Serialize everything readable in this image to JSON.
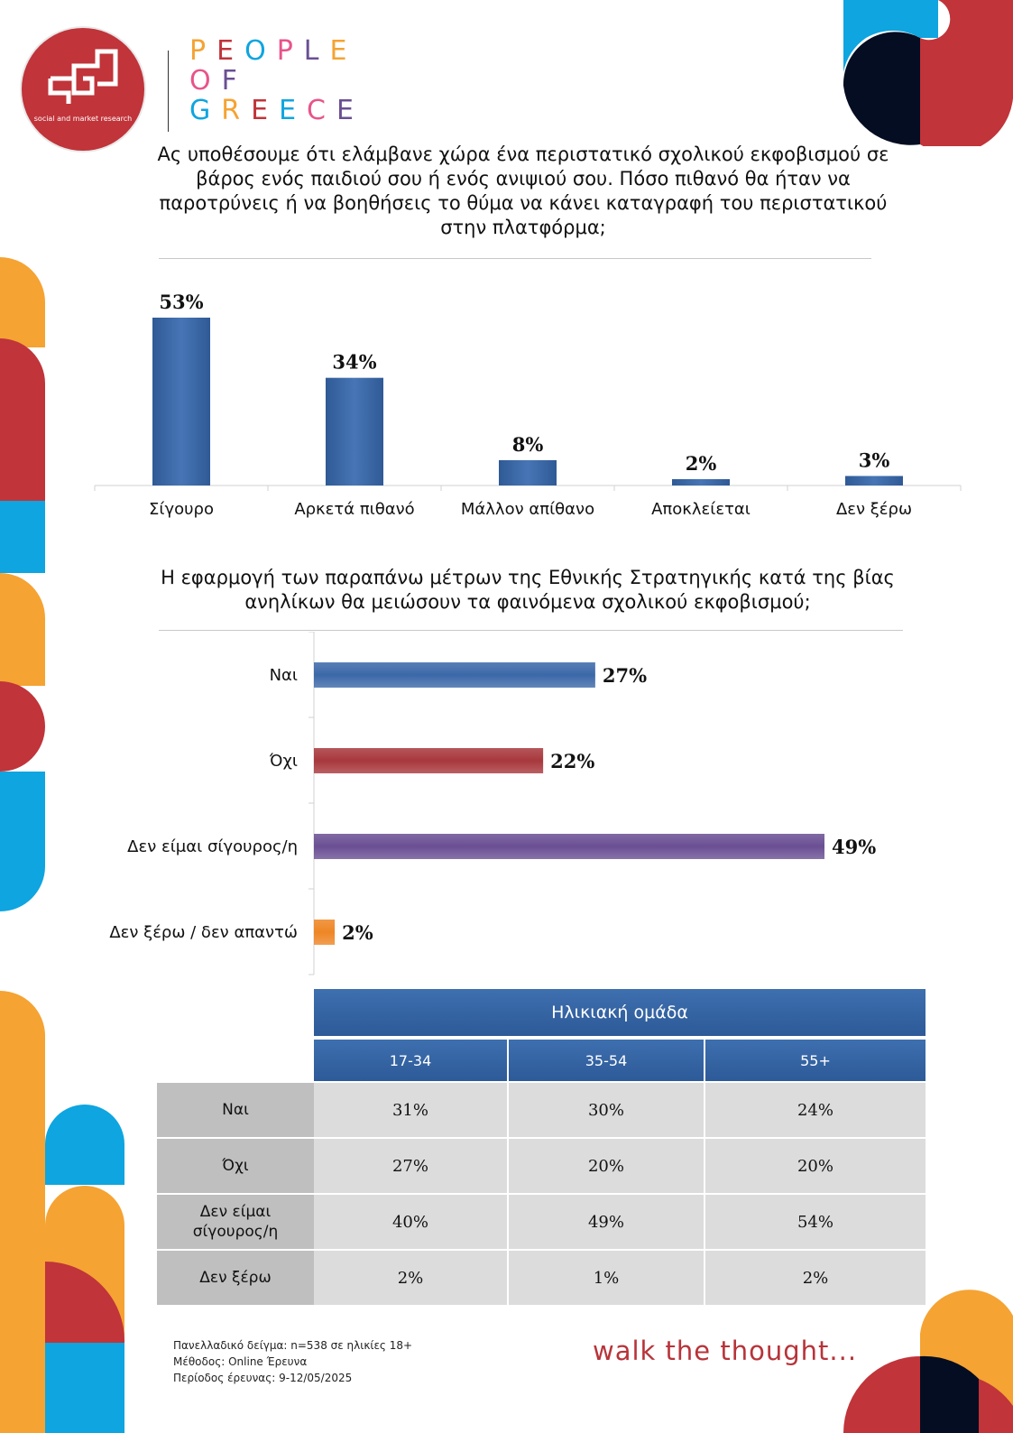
{
  "brand": {
    "logo_text": "social and market research",
    "people_of_greece": [
      "PEOPLE",
      "OF",
      "GREECE"
    ],
    "tagline": "walk the thought...",
    "colors": {
      "red": "#c0343a",
      "blue": "#0ea5e0",
      "orange": "#f5a333",
      "navy": "#050d22",
      "bar_blue": "#3c68a8",
      "bar_red": "#a8383d",
      "bar_purple": "#6a4f93",
      "bar_orange": "#ee8625"
    }
  },
  "chart1": {
    "title": "Ας υποθέσουμε ότι ελάμβανε χώρα ένα περιστατικό σχολικού εκφοβισμού σε βάρος ενός παιδιού σου ή ενός ανιψιού σου. Πόσο πιθανό θα ήταν να παροτρύνεις ή να βοηθήσεις το θύμα να κάνει καταγραφή του περιστατικού στην πλατφόρμα;"
  },
  "chart2": {
    "title": "Η εφαρμογή των παραπάνω μέτρων της Εθνικής Στρατηγικής κατά της βίας ανηλίκων θα μειώσουν τα φαινόμενα σχολικού εκφοβισμού;"
  },
  "chart_data": [
    {
      "type": "bar",
      "orientation": "vertical",
      "title": "Ας υποθέσουμε ότι ελάμβανε χώρα ένα περιστατικό σχολικού εκφοβισμού σε βάρος ενός παιδιού σου ή ενός ανιψιού σου. Πόσο πιθανό θα ήταν να παροτρύνεις ή να βοηθήσεις το θύμα να κάνει καταγραφή του περιστατικού στην πλατφόρμα;",
      "categories": [
        "Σίγουρο",
        "Αρκετά πιθανό",
        "Μάλλον απίθανο",
        "Αποκλείεται",
        "Δεν ξέρω"
      ],
      "values": [
        53,
        34,
        8,
        2,
        3
      ],
      "labels": [
        "53%",
        "34%",
        "8%",
        "2%",
        "3%"
      ],
      "unit": "%",
      "ylim": [
        0,
        60
      ],
      "grid": false,
      "color": "#3c68a8"
    },
    {
      "type": "bar",
      "orientation": "horizontal",
      "title": "Η εφαρμογή των παραπάνω μέτρων της Εθνικής Στρατηγικής κατά της βίας ανηλίκων θα μειώσουν τα φαινόμενα σχολικού εκφοβισμού;",
      "categories": [
        "Ναι",
        "Όχι",
        "Δεν είμαι σίγουρος/η",
        "Δεν ξέρω / δεν απαντώ"
      ],
      "values": [
        27,
        22,
        49,
        2
      ],
      "labels": [
        "27%",
        "22%",
        "49%",
        "2%"
      ],
      "unit": "%",
      "xlim": [
        0,
        49
      ],
      "grid": false,
      "colors": [
        "#3c68a8",
        "#a8383d",
        "#6a4f93",
        "#ee8625"
      ]
    },
    {
      "type": "table",
      "group_header": "Ηλικιακή ομάδα",
      "columns": [
        "17-34",
        "35-54",
        "55+"
      ],
      "rows": [
        {
          "label": "Ναι",
          "values": [
            "31%",
            "30%",
            "24%"
          ]
        },
        {
          "label": "Όχι",
          "values": [
            "27%",
            "20%",
            "20%"
          ]
        },
        {
          "label": "Δεν είμαι σίγουρος/η",
          "values": [
            "40%",
            "49%",
            "54%"
          ]
        },
        {
          "label": "Δεν ξέρω",
          "values": [
            "2%",
            "1%",
            "2%"
          ]
        }
      ]
    }
  ],
  "footer": {
    "sample": "Πανελλαδικό δείγμα: n=538 σε ηλικίες 18+",
    "method": "Μέθοδος: Online Έρευνα",
    "period": "Περίοδος έρευνας: 9-12/05/2025"
  }
}
